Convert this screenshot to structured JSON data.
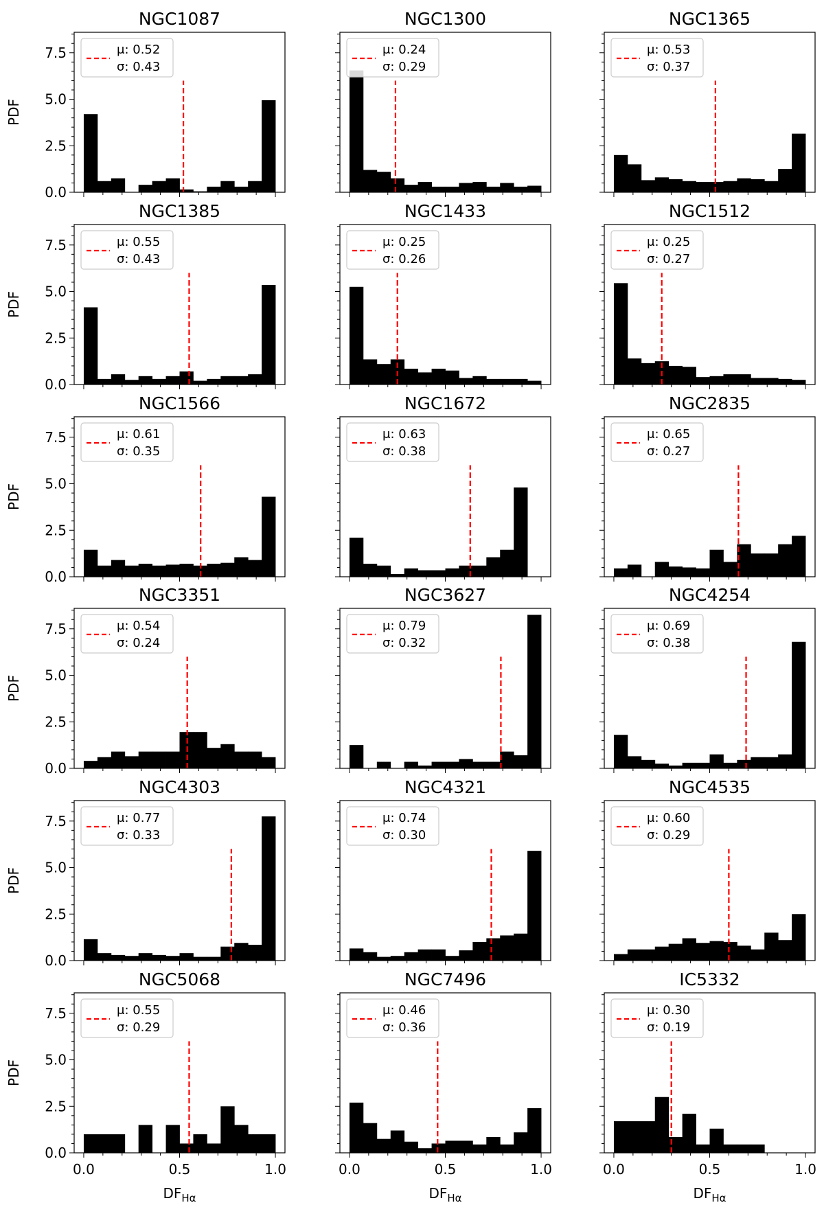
{
  "figure": {
    "ylabel": "PDF",
    "xlabel_main": "DF",
    "xlabel_sub": "Hα",
    "ylim": [
      0,
      8.6
    ],
    "xlim": [
      -0.05,
      1.05
    ],
    "yticks": [
      "0.0",
      "2.5",
      "5.0",
      "7.5"
    ],
    "xticks": [
      "0.0",
      "0.5",
      "1.0"
    ],
    "mean_symbol": "μ",
    "std_symbol": "σ",
    "mean_line_top": 6.0,
    "colors": {
      "bars": "#000000",
      "mean_line": "#ff0000",
      "axes": "#000000",
      "legend_border": "#cccccc"
    }
  },
  "chart_data": [
    {
      "type": "bar",
      "title": "NGC1087",
      "mu": "0.52",
      "sigma": "0.43",
      "mean": 0.52,
      "bins": 14,
      "values": [
        4.2,
        0.6,
        0.75,
        0,
        0.4,
        0.6,
        0.75,
        0.15,
        0.05,
        0.3,
        0.6,
        0.3,
        0.6,
        4.95
      ]
    },
    {
      "type": "bar",
      "title": "NGC1300",
      "mu": "0.24",
      "sigma": "0.29",
      "mean": 0.24,
      "bins": 14,
      "values": [
        6.55,
        1.2,
        1.1,
        0.75,
        0.4,
        0.55,
        0.3,
        0.3,
        0.5,
        0.55,
        0.3,
        0.5,
        0.3,
        0.35
      ]
    },
    {
      "type": "bar",
      "title": "NGC1365",
      "mu": "0.53",
      "sigma": "0.37",
      "mean": 0.53,
      "bins": 14,
      "values": [
        2.0,
        1.5,
        0.65,
        0.8,
        0.7,
        0.6,
        0.55,
        0.55,
        0.6,
        0.75,
        0.7,
        0.6,
        1.25,
        3.15
      ]
    },
    {
      "type": "bar",
      "title": "NGC1385",
      "mu": "0.55",
      "sigma": "0.43",
      "mean": 0.55,
      "bins": 14,
      "values": [
        4.15,
        0.3,
        0.55,
        0.25,
        0.45,
        0.3,
        0.45,
        0.7,
        0.2,
        0.3,
        0.45,
        0.45,
        0.55,
        5.35
      ]
    },
    {
      "type": "bar",
      "title": "NGC1433",
      "mu": "0.25",
      "sigma": "0.26",
      "mean": 0.25,
      "bins": 14,
      "values": [
        5.25,
        1.35,
        1.1,
        1.35,
        0.85,
        0.65,
        0.85,
        0.75,
        0.35,
        0.45,
        0.3,
        0.3,
        0.3,
        0.2
      ]
    },
    {
      "type": "bar",
      "title": "NGC1512",
      "mu": "0.25",
      "sigma": "0.27",
      "mean": 0.25,
      "bins": 14,
      "values": [
        5.45,
        1.4,
        1.15,
        1.25,
        1.0,
        0.95,
        0.4,
        0.45,
        0.55,
        0.55,
        0.35,
        0.35,
        0.3,
        0.25
      ]
    },
    {
      "type": "bar",
      "title": "NGC1566",
      "mu": "0.61",
      "sigma": "0.35",
      "mean": 0.61,
      "bins": 14,
      "values": [
        1.45,
        0.6,
        0.9,
        0.6,
        0.7,
        0.6,
        0.65,
        0.7,
        0.6,
        0.7,
        0.75,
        1.05,
        0.9,
        4.3
      ]
    },
    {
      "type": "bar",
      "title": "NGC1672",
      "mu": "0.63",
      "sigma": "0.38",
      "mean": 0.63,
      "bins": 14,
      "values": [
        2.1,
        0.7,
        0.6,
        0.15,
        0.45,
        0.35,
        0.35,
        0.45,
        0.6,
        0.6,
        1.05,
        1.45,
        4.8,
        0
      ]
    },
    {
      "type": "bar",
      "title": "NGC2835",
      "mu": "0.65",
      "sigma": "0.27",
      "mean": 0.65,
      "bins": 14,
      "values": [
        0.45,
        0.65,
        0,
        0.8,
        0.55,
        0.5,
        0.45,
        1.45,
        0.8,
        1.75,
        1.25,
        1.25,
        1.75,
        2.2
      ]
    },
    {
      "type": "bar",
      "title": "NGC3351",
      "mu": "0.54",
      "sigma": "0.24",
      "mean": 0.54,
      "bins": 14,
      "values": [
        0.4,
        0.6,
        0.9,
        0.65,
        0.9,
        0.9,
        0.9,
        1.95,
        1.95,
        1.1,
        1.3,
        0.9,
        0.9,
        0.6
      ]
    },
    {
      "type": "bar",
      "title": "NGC3627",
      "mu": "0.79",
      "sigma": "0.32",
      "mean": 0.79,
      "bins": 14,
      "values": [
        1.25,
        0,
        0.35,
        0,
        0.35,
        0.15,
        0.35,
        0.35,
        0.5,
        0.35,
        0.35,
        0.9,
        0.7,
        8.25
      ]
    },
    {
      "type": "bar",
      "title": "NGC4254",
      "mu": "0.69",
      "sigma": "0.38",
      "mean": 0.69,
      "bins": 14,
      "values": [
        1.8,
        0.65,
        0.45,
        0.25,
        0.15,
        0.3,
        0.3,
        0.75,
        0.3,
        0.45,
        0.6,
        0.6,
        0.75,
        6.8
      ]
    },
    {
      "type": "bar",
      "title": "NGC4303",
      "mu": "0.77",
      "sigma": "0.33",
      "mean": 0.77,
      "bins": 14,
      "values": [
        1.15,
        0.4,
        0.3,
        0.25,
        0.4,
        0.3,
        0.25,
        0.4,
        0.2,
        0.2,
        0.75,
        0.95,
        0.85,
        7.75
      ]
    },
    {
      "type": "bar",
      "title": "NGC4321",
      "mu": "0.74",
      "sigma": "0.30",
      "mean": 0.74,
      "bins": 14,
      "values": [
        0.65,
        0.45,
        0.2,
        0.25,
        0.45,
        0.6,
        0.6,
        0.25,
        0.55,
        1.0,
        1.2,
        1.35,
        1.45,
        5.9
      ]
    },
    {
      "type": "bar",
      "title": "NGC4535",
      "mu": "0.60",
      "sigma": "0.29",
      "mean": 0.6,
      "bins": 14,
      "values": [
        0.35,
        0.6,
        0.6,
        0.75,
        0.9,
        1.2,
        0.95,
        1.05,
        1.0,
        0.8,
        0.6,
        1.5,
        1.1,
        2.5
      ]
    },
    {
      "type": "bar",
      "title": "NGC5068",
      "mu": "0.55",
      "sigma": "0.29",
      "mean": 0.55,
      "bins": 14,
      "values": [
        1.0,
        1.0,
        1.0,
        0,
        1.5,
        0,
        1.5,
        0.5,
        1.0,
        0.5,
        2.5,
        1.5,
        1.0,
        1.0
      ]
    },
    {
      "type": "bar",
      "title": "NGC7496",
      "mu": "0.46",
      "sigma": "0.36",
      "mean": 0.46,
      "bins": 14,
      "values": [
        2.7,
        1.6,
        0.75,
        1.2,
        0.6,
        0.25,
        0.5,
        0.65,
        0.65,
        0.45,
        0.85,
        0.45,
        1.1,
        2.4
      ]
    },
    {
      "type": "bar",
      "title": "IC5332",
      "mu": "0.30",
      "sigma": "0.19",
      "mean": 0.3,
      "bins": 14,
      "values": [
        1.7,
        1.7,
        1.7,
        3.0,
        0.85,
        2.1,
        0.45,
        1.3,
        0.45,
        0.45,
        0.45,
        0,
        0,
        0
      ]
    }
  ]
}
